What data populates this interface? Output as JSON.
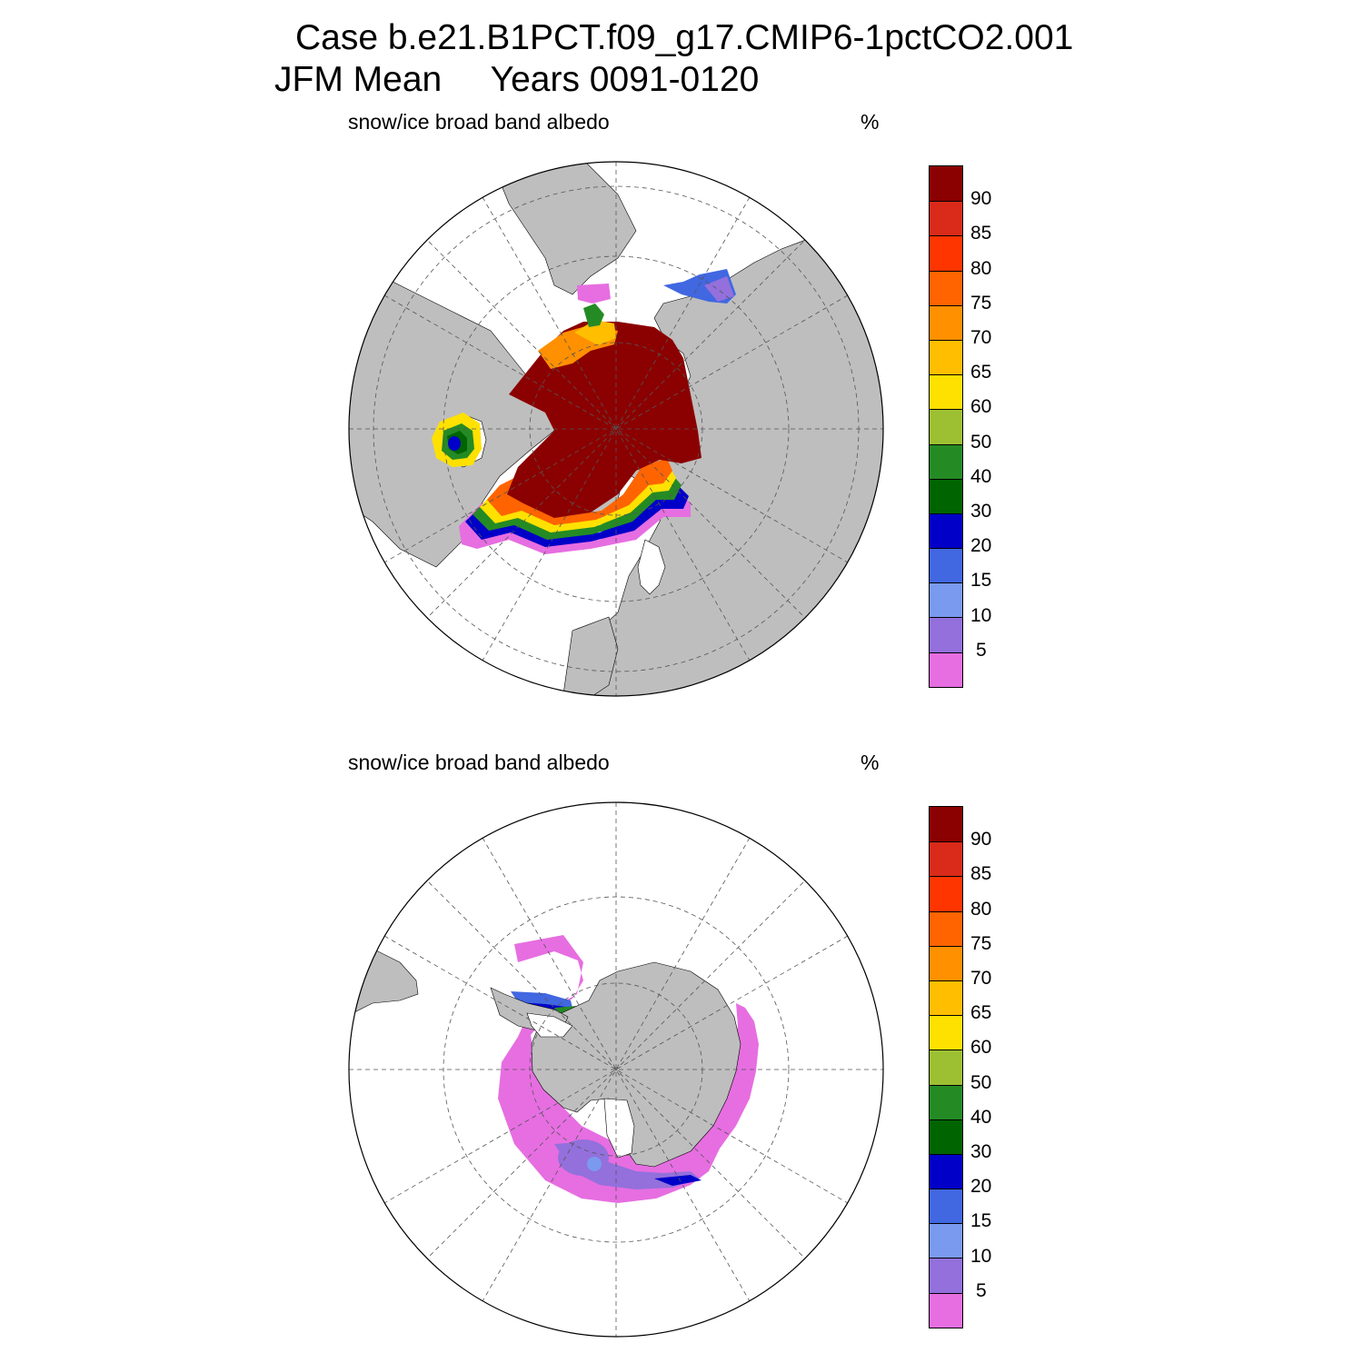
{
  "title": {
    "line1": "Case b.e21.B1PCT.f09_g17.CMIP6-1pctCO2.001",
    "line2": "JFM Mean     Years 0091-0120"
  },
  "colors": {
    "land": "#bebebe",
    "ocean": "#ffffff",
    "grid": "#555555"
  },
  "colorbar": {
    "levels": [
      "90",
      "85",
      "80",
      "75",
      "70",
      "65",
      "60",
      "50",
      "40",
      "30",
      "20",
      "15",
      "10",
      "5"
    ],
    "colors": [
      "#8b0000",
      "#d92a1a",
      "#ff3500",
      "#ff6400",
      "#ff9000",
      "#ffbe00",
      "#ffe100",
      "#9dc032",
      "#248b24",
      "#006400",
      "#0000c8",
      "#4167e1",
      "#7a9af0",
      "#9370dc",
      "#e66ee1"
    ]
  },
  "panels": [
    {
      "id": "nh",
      "variable": "snow/ice broad band albedo",
      "units": "%"
    },
    {
      "id": "sh",
      "variable": "snow/ice broad band albedo",
      "units": "%"
    }
  ]
}
